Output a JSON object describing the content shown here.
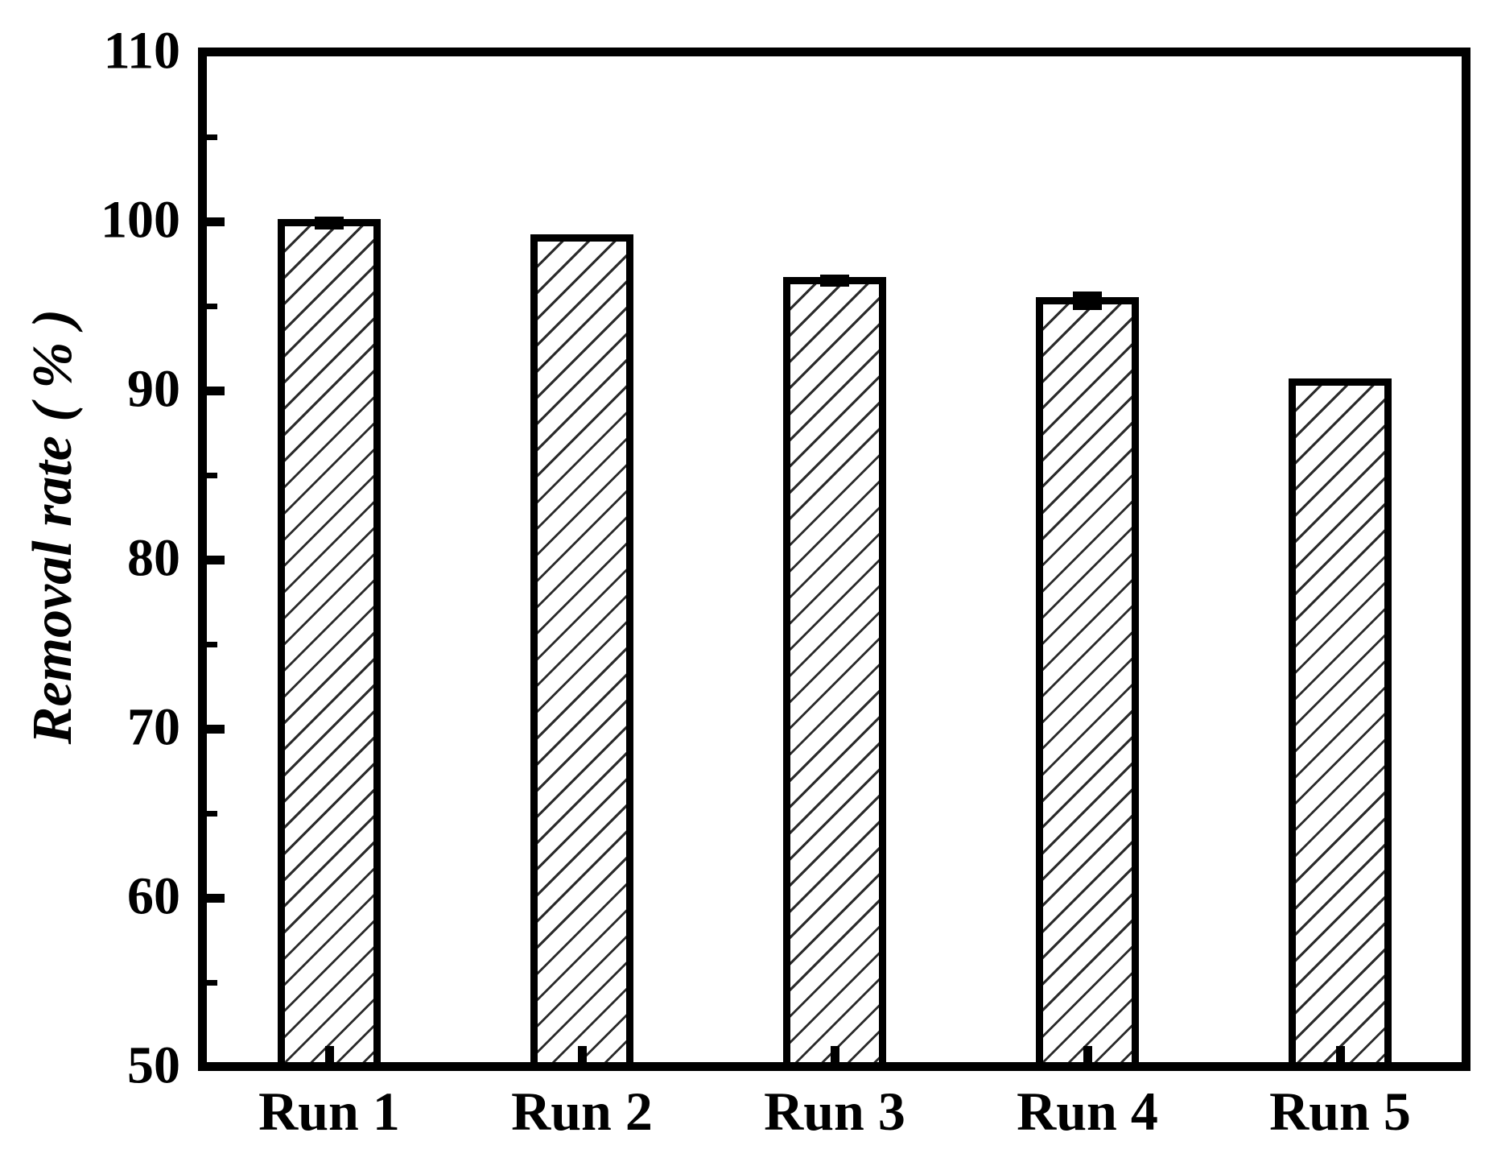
{
  "chart_data": {
    "type": "bar",
    "title": "",
    "categories": [
      "Run 1",
      "Run 2",
      "Run 3",
      "Run 4",
      "Run 5"
    ],
    "values": [
      99.9,
      99.0,
      96.5,
      95.3,
      90.5
    ],
    "errors": [
      0.25,
      0,
      0.2,
      0.4,
      0
    ],
    "xlabel": "",
    "ylabel": "Removal rate ( % )",
    "ylim": [
      50,
      110
    ],
    "yticks_major": [
      50,
      60,
      70,
      80,
      90,
      100,
      110
    ],
    "yticks_minor": [
      55,
      65,
      75,
      85,
      95,
      105
    ],
    "grid": false,
    "legend": null,
    "frame": "full-box",
    "tick_direction": "in",
    "bar_fill": "white with black forward-diagonal hatch",
    "colors": {
      "axis": "#000000",
      "text": "#000000",
      "hatch_line": "#2b2b2b",
      "background": "#ffffff"
    }
  }
}
